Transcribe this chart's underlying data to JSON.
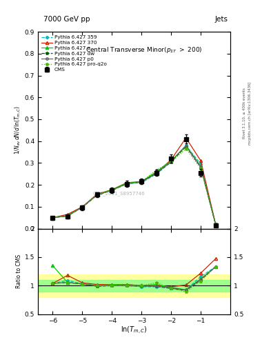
{
  "title_top": "7000 GeV pp",
  "title_right": "Jets",
  "plot_title": "Central Transverse Minor(p_{#varSigmaT}  > 200)",
  "xlabel": "ln(T_{m,C})",
  "ylabel_main": "1/N_{ev} dN/d_{,}ln(T_{m,C})",
  "ylabel_ratio": "Ratio to CMS",
  "watermark": "CMS_2011_S8957746",
  "right_label1": "Rivet 3.1.10, ≥ 400k events",
  "right_label2": "mcplots.cern.ch [arXiv:1306.3436]",
  "xlim": [
    -6.5,
    0.0
  ],
  "ylim_main": [
    0.0,
    0.9
  ],
  "ylim_ratio": [
    0.5,
    2.0
  ],
  "xticks": [
    -6,
    -5,
    -4,
    -3,
    -2,
    -1
  ],
  "cms_x": [
    -6.0,
    -5.5,
    -5.0,
    -4.5,
    -4.0,
    -3.5,
    -3.0,
    -2.5,
    -2.0,
    -1.5,
    -1.0,
    -0.5
  ],
  "cms_y": [
    0.048,
    0.055,
    0.095,
    0.155,
    0.175,
    0.205,
    0.215,
    0.255,
    0.32,
    0.41,
    0.255,
    0.015
  ],
  "cms_yerr": [
    0.008,
    0.008,
    0.01,
    0.012,
    0.012,
    0.013,
    0.013,
    0.015,
    0.018,
    0.022,
    0.018,
    0.005
  ],
  "py359_y": [
    0.05,
    0.06,
    0.098,
    0.155,
    0.175,
    0.205,
    0.21,
    0.25,
    0.305,
    0.38,
    0.295,
    0.02
  ],
  "py370_y": [
    0.05,
    0.065,
    0.1,
    0.158,
    0.178,
    0.21,
    0.215,
    0.255,
    0.315,
    0.415,
    0.31,
    0.022
  ],
  "pya_y": [
    0.05,
    0.058,
    0.098,
    0.155,
    0.178,
    0.208,
    0.215,
    0.26,
    0.31,
    0.38,
    0.285,
    0.02
  ],
  "pydw_y": [
    0.05,
    0.058,
    0.098,
    0.153,
    0.175,
    0.205,
    0.215,
    0.252,
    0.305,
    0.375,
    0.28,
    0.02
  ],
  "pyp0_y": [
    0.05,
    0.058,
    0.098,
    0.155,
    0.175,
    0.205,
    0.213,
    0.252,
    0.308,
    0.378,
    0.282,
    0.02
  ],
  "pyq2o_y": [
    0.05,
    0.058,
    0.098,
    0.155,
    0.175,
    0.205,
    0.215,
    0.268,
    0.305,
    0.365,
    0.275,
    0.02
  ],
  "ratio_py359": [
    1.04,
    1.09,
    1.03,
    1.0,
    1.0,
    1.0,
    0.98,
    0.98,
    0.953,
    0.927,
    1.16,
    1.33
  ],
  "ratio_py370": [
    1.04,
    1.18,
    1.05,
    1.02,
    1.02,
    1.02,
    1.0,
    1.0,
    0.98,
    1.012,
    1.22,
    1.47
  ],
  "ratio_pya": [
    1.04,
    1.055,
    1.03,
    1.0,
    1.02,
    1.015,
    1.0,
    1.02,
    0.97,
    0.927,
    1.12,
    1.33
  ],
  "ratio_pydw": [
    1.04,
    1.055,
    1.03,
    0.99,
    1.0,
    1.0,
    1.0,
    0.99,
    0.953,
    0.915,
    1.1,
    1.33
  ],
  "ratio_pyp0": [
    1.04,
    1.055,
    1.03,
    1.0,
    1.0,
    1.0,
    0.99,
    0.99,
    0.963,
    0.922,
    1.11,
    1.33
  ],
  "ratio_pyq2o": [
    1.04,
    1.055,
    1.03,
    1.0,
    1.0,
    1.0,
    1.0,
    1.05,
    0.953,
    0.89,
    1.08,
    1.33
  ],
  "ratio_pya_first": 1.35,
  "color_359": "#00BBBB",
  "color_370": "#CC2200",
  "color_a": "#00CC00",
  "color_dw": "#005500",
  "color_p0": "#666666",
  "color_q2o": "#44BB00",
  "color_cms": "#000000"
}
